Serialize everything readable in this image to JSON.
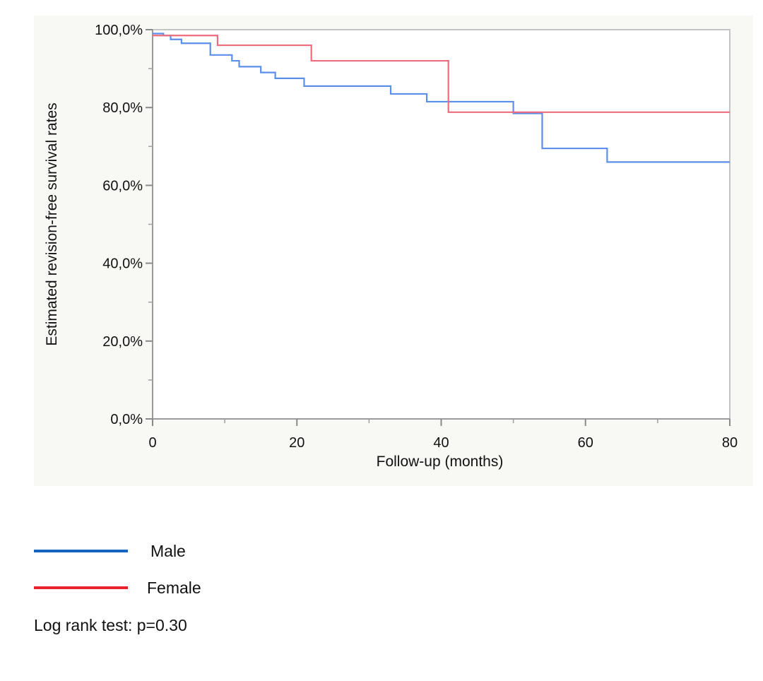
{
  "chart_data": {
    "type": "line",
    "subtype": "step",
    "xlabel": "Follow-up (months)",
    "ylabel": "Estimated revision-free survival rates",
    "xlim": [
      0,
      80
    ],
    "ylim": [
      0,
      100
    ],
    "x_ticks": [
      "0",
      "20",
      "40",
      "60",
      "80"
    ],
    "y_ticks": [
      "0,0%",
      "20,0%",
      "40,0%",
      "60,0%",
      "80,0%",
      "100,0%"
    ],
    "grid": false,
    "legend_position": "bottom-left, below plot",
    "series": [
      {
        "name": "Male",
        "color": "#5b8fe8",
        "points": [
          [
            0,
            99.0
          ],
          [
            1.5,
            98.5
          ],
          [
            2.5,
            97.5
          ],
          [
            4,
            96.5
          ],
          [
            8,
            93.5
          ],
          [
            11,
            92.0
          ],
          [
            12,
            90.5
          ],
          [
            15,
            89.0
          ],
          [
            17,
            87.5
          ],
          [
            21,
            85.5
          ],
          [
            33,
            83.5
          ],
          [
            38,
            81.5
          ],
          [
            50,
            78.5
          ],
          [
            54,
            69.5
          ],
          [
            63,
            66.0
          ],
          [
            80,
            66.0
          ]
        ]
      },
      {
        "name": "Female",
        "color": "#ee6c7c",
        "points": [
          [
            0,
            98.5
          ],
          [
            9,
            96.0
          ],
          [
            22,
            92.0
          ],
          [
            41,
            78.8
          ],
          [
            80,
            78.8
          ]
        ]
      }
    ]
  },
  "legend": [
    {
      "label": "Male",
      "color": "#1565c0"
    },
    {
      "label": "Female",
      "color": "#e8232d"
    }
  ],
  "note": "Log rank test: p=0.30"
}
